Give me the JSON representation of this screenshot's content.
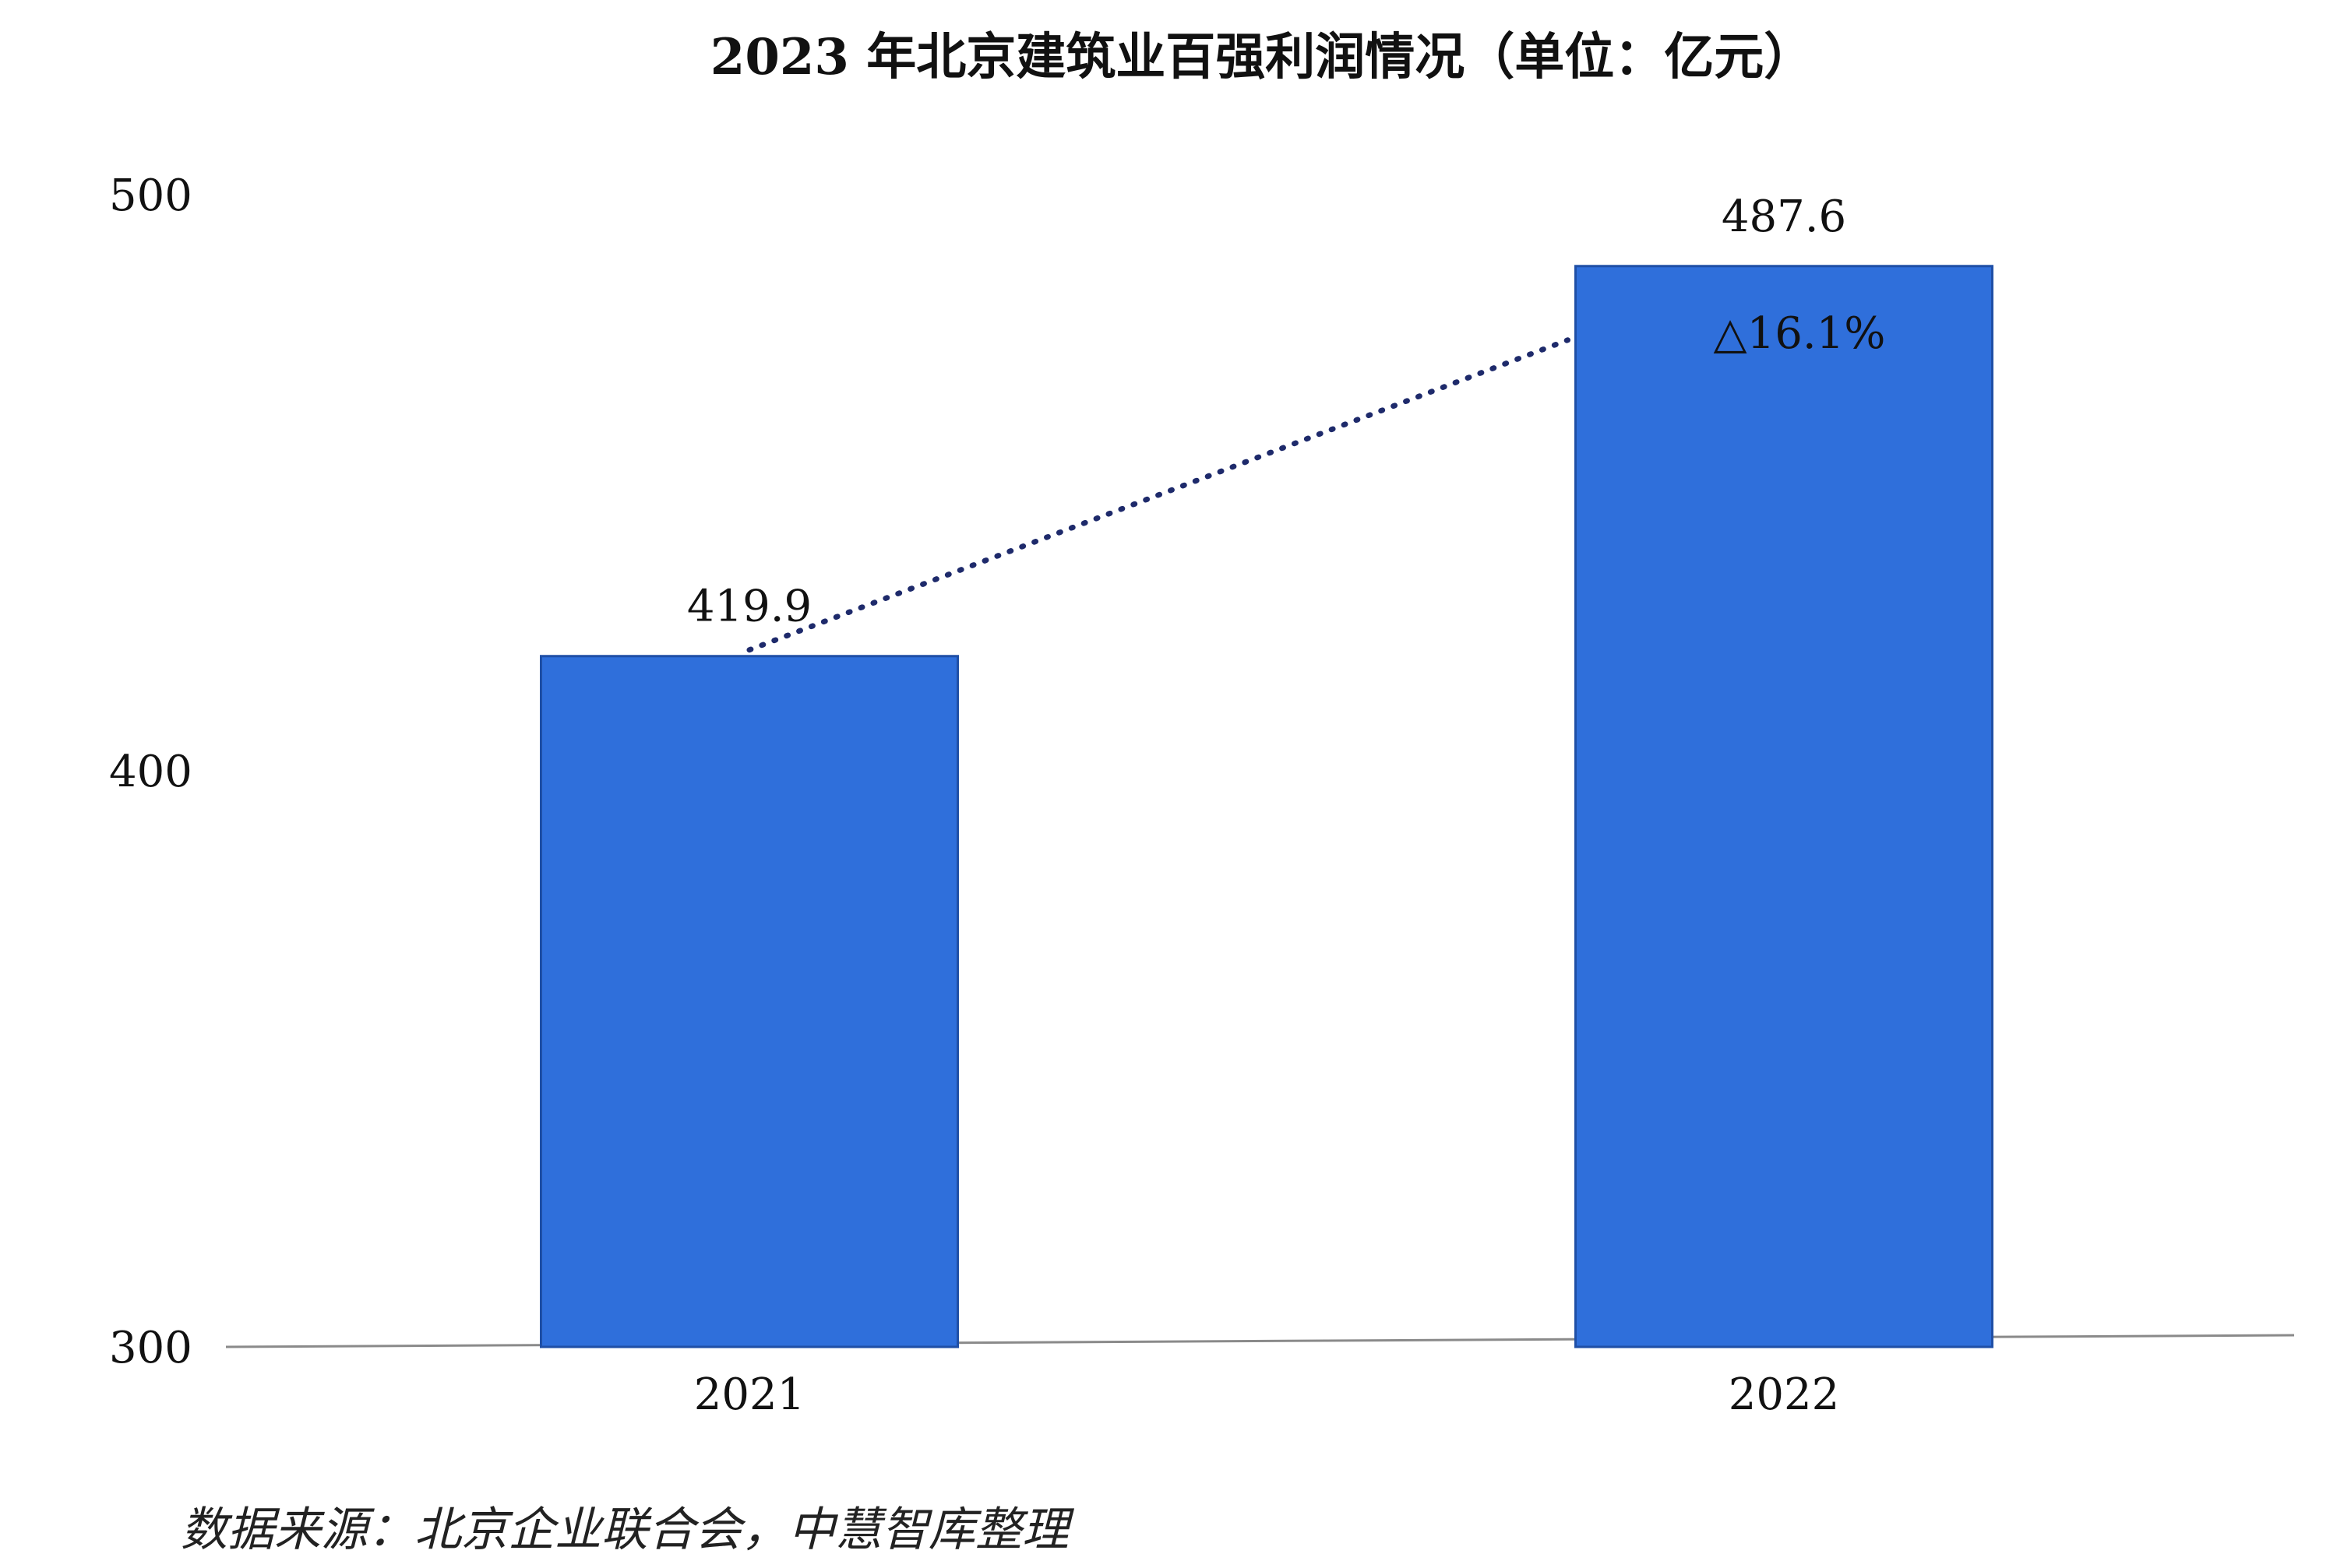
{
  "chart_data": {
    "type": "bar",
    "title": "2023 年北京建筑业百强利润情况（单位：亿元）",
    "categories": [
      "2021",
      "2022"
    ],
    "values": [
      419.9,
      487.6
    ],
    "data_labels": [
      "419.9",
      "487.6"
    ],
    "ylim": [
      300,
      500
    ],
    "yticks": [
      300,
      400,
      500
    ],
    "ytick_labels": [
      "300",
      "400",
      "500"
    ],
    "xlabel": "",
    "ylabel": "",
    "grid": false,
    "legend": "none",
    "growth_annotation": "△16.1%",
    "bar_color": "#2F6FDB",
    "trend_line_color": "#1E2A6B",
    "source": "数据来源：北京企业联合会，中慧智库整理"
  }
}
